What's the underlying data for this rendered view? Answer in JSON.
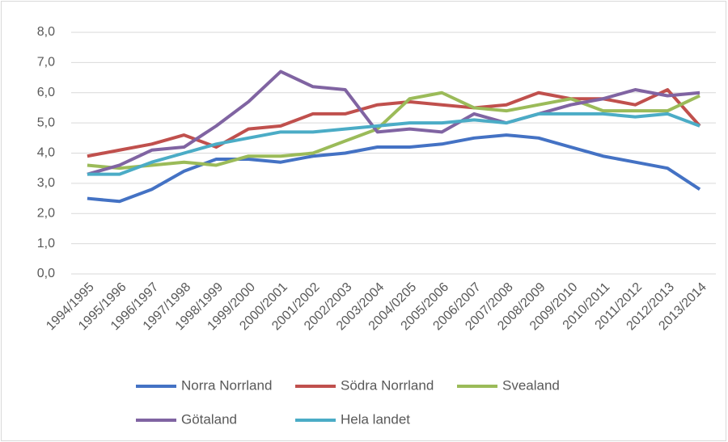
{
  "chart_data": {
    "type": "line",
    "categories": [
      "1994/1995",
      "1995/1996",
      "1996/1997",
      "1997/1998",
      "1998/1999",
      "1999/2000",
      "2000/2001",
      "2001/2002",
      "2002/2003",
      "2003/2004",
      "2004/0205",
      "2005/2006",
      "2006/2007",
      "2007/2008",
      "2008/2009",
      "2009/2010",
      "2010/2011",
      "2011/2012",
      "2012/2013",
      "2013/2014"
    ],
    "series": [
      {
        "name": "Norra Norrland",
        "color": "#4472c4",
        "values": [
          2.5,
          2.4,
          2.8,
          3.4,
          3.8,
          3.8,
          3.7,
          3.9,
          4.0,
          4.2,
          4.2,
          4.3,
          4.5,
          4.6,
          4.5,
          4.2,
          3.9,
          3.7,
          3.5,
          2.8
        ]
      },
      {
        "name": "Södra Norrland",
        "color": "#c0504d",
        "values": [
          3.9,
          4.1,
          4.3,
          4.6,
          4.2,
          4.8,
          4.9,
          5.3,
          5.3,
          5.6,
          5.7,
          5.6,
          5.5,
          5.6,
          6.0,
          5.8,
          5.8,
          5.6,
          6.1,
          4.9
        ]
      },
      {
        "name": "Svealand",
        "color": "#9bbb59",
        "values": [
          3.6,
          3.5,
          3.6,
          3.7,
          3.6,
          3.9,
          3.9,
          4.0,
          4.4,
          4.8,
          5.8,
          6.0,
          5.5,
          5.4,
          5.6,
          5.8,
          5.4,
          5.4,
          5.4,
          5.9
        ]
      },
      {
        "name": "Götaland",
        "color": "#8064a2",
        "values": [
          3.3,
          3.6,
          4.1,
          4.2,
          4.9,
          5.7,
          6.7,
          6.2,
          6.1,
          4.7,
          4.8,
          4.7,
          5.3,
          5.0,
          5.3,
          5.6,
          5.8,
          6.1,
          5.9,
          6.0
        ]
      },
      {
        "name": "Hela landet",
        "color": "#4bacc6",
        "values": [
          3.3,
          3.3,
          3.7,
          4.0,
          4.3,
          4.5,
          4.7,
          4.7,
          4.8,
          4.9,
          5.0,
          5.0,
          5.1,
          5.0,
          5.3,
          5.3,
          5.3,
          5.2,
          5.3,
          4.9
        ]
      }
    ],
    "ylim": [
      0,
      8
    ],
    "yticks": [
      {
        "value": 0,
        "label": "0,0"
      },
      {
        "value": 1,
        "label": "1,0"
      },
      {
        "value": 2,
        "label": "2,0"
      },
      {
        "value": 3,
        "label": "3,0"
      },
      {
        "value": 4,
        "label": "4,0"
      },
      {
        "value": 5,
        "label": "5,0"
      },
      {
        "value": 6,
        "label": "6,0"
      },
      {
        "value": 7,
        "label": "7,0"
      },
      {
        "value": 8,
        "label": "8,0"
      }
    ],
    "grid": true
  }
}
